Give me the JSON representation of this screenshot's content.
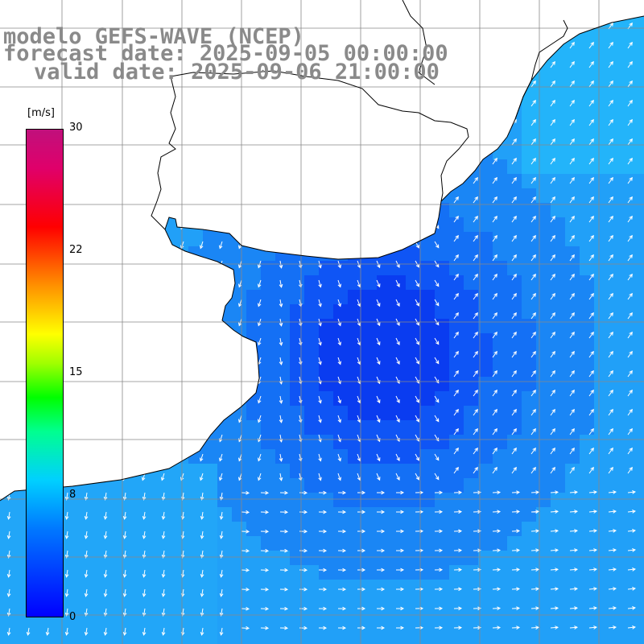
{
  "title": {
    "line1": "modelo GEFS-WAVE (NCEP)",
    "line2": "forecast date: 2025-09-05 00:00:00",
    "line3": "valid date: 2025-09-06 21:00:00"
  },
  "colorbar": {
    "unit": "[m/s]",
    "ticks": [
      {
        "label": "30",
        "value": 30
      },
      {
        "label": "22",
        "value": 22
      },
      {
        "label": "15",
        "value": 15
      },
      {
        "label": "8",
        "value": 8
      },
      {
        "label": "0",
        "value": 0
      }
    ],
    "colors": [
      "#0000ff",
      "#0078ff",
      "#00d0ff",
      "#00ff90",
      "#00ff00",
      "#ffff00",
      "#ff9000",
      "#ff0000",
      "#c0107c"
    ]
  },
  "map": {
    "background": "#ffffff",
    "grid_color": "#888888",
    "arrow_color": "#ffffff",
    "coastline_color": "#000000"
  }
}
